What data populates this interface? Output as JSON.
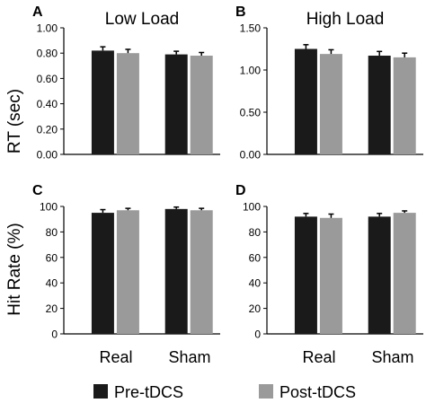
{
  "figure": {
    "y_label_top": "RT (sec)",
    "y_label_bottom": "Hit Rate (%)",
    "categories": [
      "Real",
      "Sham"
    ],
    "legend": [
      {
        "label": "Pre-tDCS",
        "color": "#1a1a1a"
      },
      {
        "label": "Post-tDCS",
        "color": "#9a9a9a"
      }
    ]
  },
  "chart_data": [
    {
      "panel": "A",
      "type": "bar",
      "title": "Low Load",
      "ylabel": "RT (sec)",
      "categories": [
        "Real",
        "Sham"
      ],
      "ylim": [
        0,
        1.0
      ],
      "yticks": [
        "0.00",
        "0.20",
        "0.40",
        "0.60",
        "0.80",
        "1.00"
      ],
      "series": [
        {
          "name": "Pre-tDCS",
          "values": [
            0.82,
            0.79
          ],
          "errors": [
            0.03,
            0.025
          ]
        },
        {
          "name": "Post-tDCS",
          "values": [
            0.8,
            0.78
          ],
          "errors": [
            0.03,
            0.025
          ]
        }
      ]
    },
    {
      "panel": "B",
      "type": "bar",
      "title": "High Load",
      "ylabel": "",
      "categories": [
        "Real",
        "Sham"
      ],
      "ylim": [
        0,
        1.5
      ],
      "yticks": [
        "0.00",
        "0.50",
        "1.00",
        "1.50"
      ],
      "series": [
        {
          "name": "Pre-tDCS",
          "values": [
            1.25,
            1.17
          ],
          "errors": [
            0.05,
            0.05
          ]
        },
        {
          "name": "Post-tDCS",
          "values": [
            1.19,
            1.15
          ],
          "errors": [
            0.05,
            0.05
          ]
        }
      ]
    },
    {
      "panel": "C",
      "type": "bar",
      "title": "",
      "ylabel": "Hit Rate (%)",
      "categories": [
        "Real",
        "Sham"
      ],
      "ylim": [
        0,
        100
      ],
      "yticks": [
        "0",
        "20",
        "40",
        "60",
        "80",
        "100"
      ],
      "series": [
        {
          "name": "Pre-tDCS",
          "values": [
            95,
            98
          ],
          "errors": [
            2.5,
            1.5
          ]
        },
        {
          "name": "Post-tDCS",
          "values": [
            97,
            97
          ],
          "errors": [
            1.5,
            1.5
          ]
        }
      ]
    },
    {
      "panel": "D",
      "type": "bar",
      "title": "",
      "ylabel": "",
      "categories": [
        "Real",
        "Sham"
      ],
      "ylim": [
        0,
        100
      ],
      "yticks": [
        "0",
        "20",
        "40",
        "60",
        "80",
        "100"
      ],
      "series": [
        {
          "name": "Pre-tDCS",
          "values": [
            92,
            92
          ],
          "errors": [
            2.5,
            2.5
          ]
        },
        {
          "name": "Post-tDCS",
          "values": [
            91,
            95
          ],
          "errors": [
            3,
            1.5
          ]
        }
      ]
    }
  ]
}
